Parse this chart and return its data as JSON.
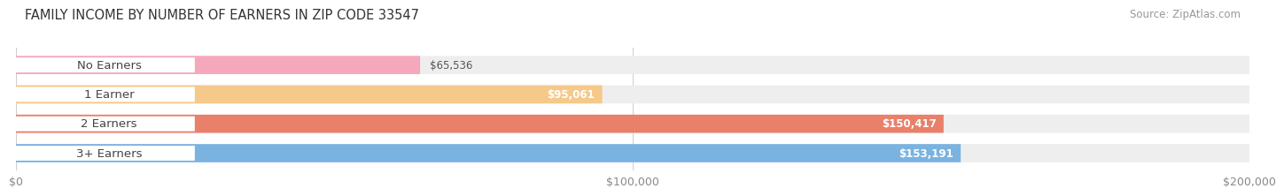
{
  "title": "FAMILY INCOME BY NUMBER OF EARNERS IN ZIP CODE 33547",
  "source": "Source: ZipAtlas.com",
  "categories": [
    "No Earners",
    "1 Earner",
    "2 Earners",
    "3+ Earners"
  ],
  "values": [
    65536,
    95061,
    150417,
    153191
  ],
  "bar_colors": [
    "#f5a8bb",
    "#f5c98a",
    "#e8806a",
    "#7ab3e0"
  ],
  "value_labels": [
    "$65,536",
    "$95,061",
    "$150,417",
    "$153,191"
  ],
  "value_label_colors": [
    "#555555",
    "#555555",
    "#ffffff",
    "#ffffff"
  ],
  "xlim": [
    0,
    200000
  ],
  "xticks": [
    0,
    100000,
    200000
  ],
  "xtick_labels": [
    "$0",
    "$100,000",
    "$200,000"
  ],
  "background_color": "#ffffff",
  "bar_track_color": "#eeeeee",
  "bar_height": 0.62,
  "bar_gap": 0.38,
  "label_pill_color": "#ffffff",
  "label_text_color": "#444444",
  "title_fontsize": 10.5,
  "source_fontsize": 8.5,
  "label_fontsize": 9.5,
  "value_fontsize": 8.5,
  "tick_fontsize": 9,
  "tick_color": "#888888"
}
